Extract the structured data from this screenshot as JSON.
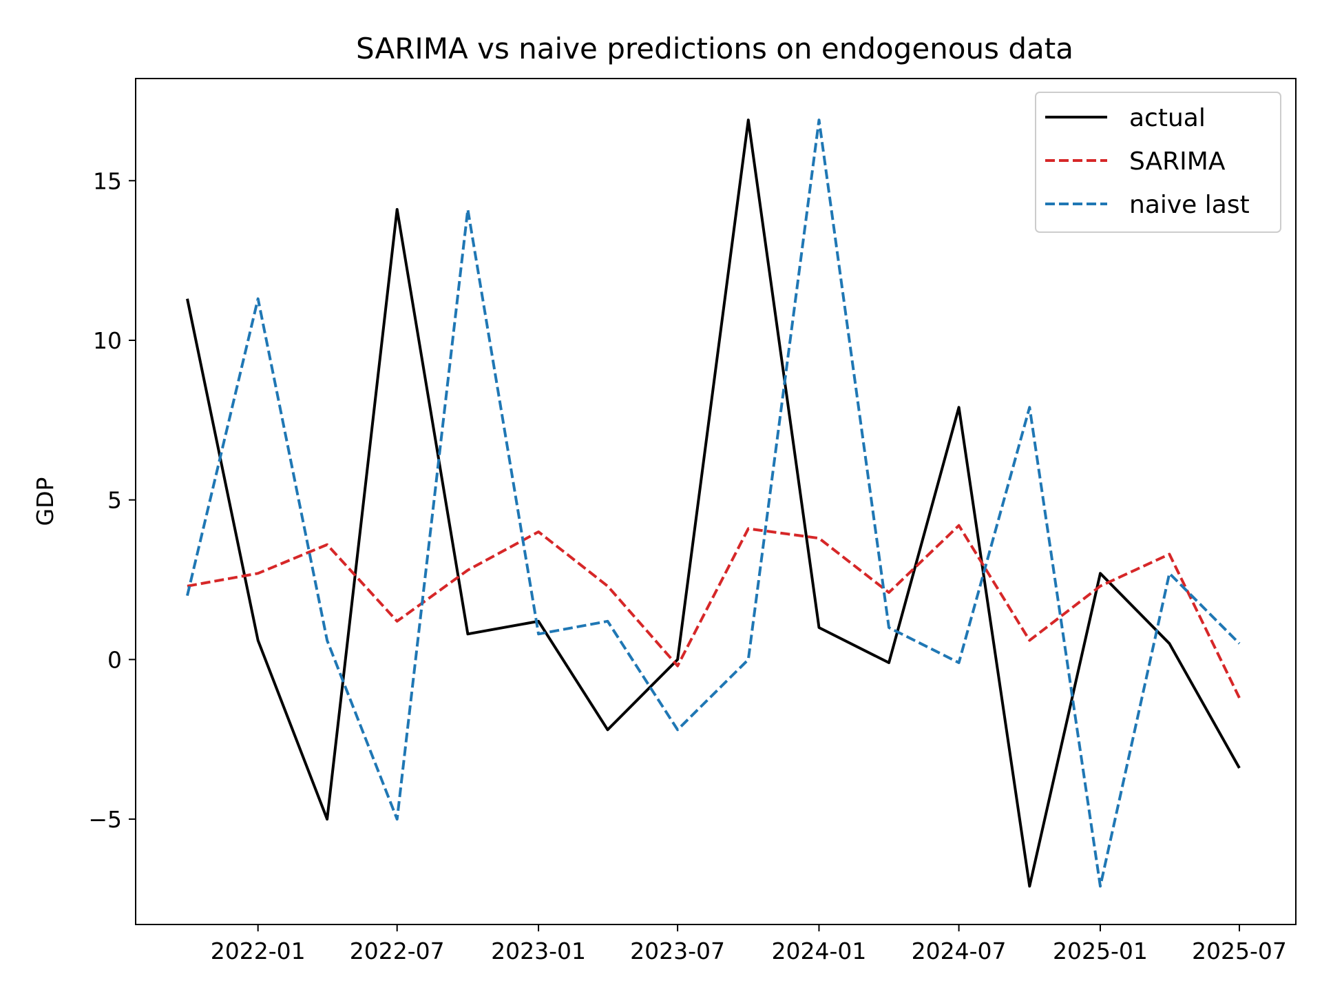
{
  "chart_data": {
    "type": "line",
    "title": "SARIMA vs naive predictions on endogenous data",
    "xlabel": "",
    "ylabel": "GDP",
    "x": [
      "2021-10-01",
      "2022-01-01",
      "2022-04-01",
      "2022-07-01",
      "2022-10-01",
      "2023-01-01",
      "2023-04-01",
      "2023-07-01",
      "2023-10-01",
      "2024-01-01",
      "2024-04-01",
      "2024-07-01",
      "2024-10-01",
      "2025-01-01",
      "2025-04-01",
      "2025-07-01"
    ],
    "x_ticks": [
      "2022-01",
      "2022-07",
      "2023-01",
      "2023-07",
      "2024-01",
      "2024-07",
      "2025-01",
      "2025-07"
    ],
    "y_ticks": [
      -5,
      0,
      5,
      10,
      15
    ],
    "y_tick_labels": [
      "−5",
      "0",
      "5",
      "10",
      "15"
    ],
    "ylim": [
      -8.3,
      18.2
    ],
    "grid": false,
    "legend_position": "top-right",
    "series": [
      {
        "name": "actual",
        "color": "#000000",
        "style": "solid",
        "values": [
          11.3,
          0.6,
          -5.0,
          14.1,
          0.8,
          1.2,
          -2.2,
          0.0,
          16.9,
          1.0,
          -0.1,
          7.9,
          -7.1,
          2.7,
          0.5,
          -3.4
        ]
      },
      {
        "name": "SARIMA",
        "color": "#d62728",
        "style": "dashed",
        "values": [
          2.3,
          2.7,
          3.6,
          1.2,
          2.8,
          4.0,
          2.3,
          -0.2,
          4.1,
          3.8,
          2.1,
          4.2,
          0.6,
          2.3,
          3.3,
          -1.2
        ]
      },
      {
        "name": "naive last",
        "color": "#1f77b4",
        "style": "dashed",
        "values": [
          2.0,
          11.3,
          0.6,
          -5.0,
          14.1,
          0.8,
          1.2,
          -2.2,
          0.0,
          16.9,
          1.0,
          -0.1,
          7.9,
          -7.1,
          2.7,
          0.5
        ]
      }
    ]
  }
}
